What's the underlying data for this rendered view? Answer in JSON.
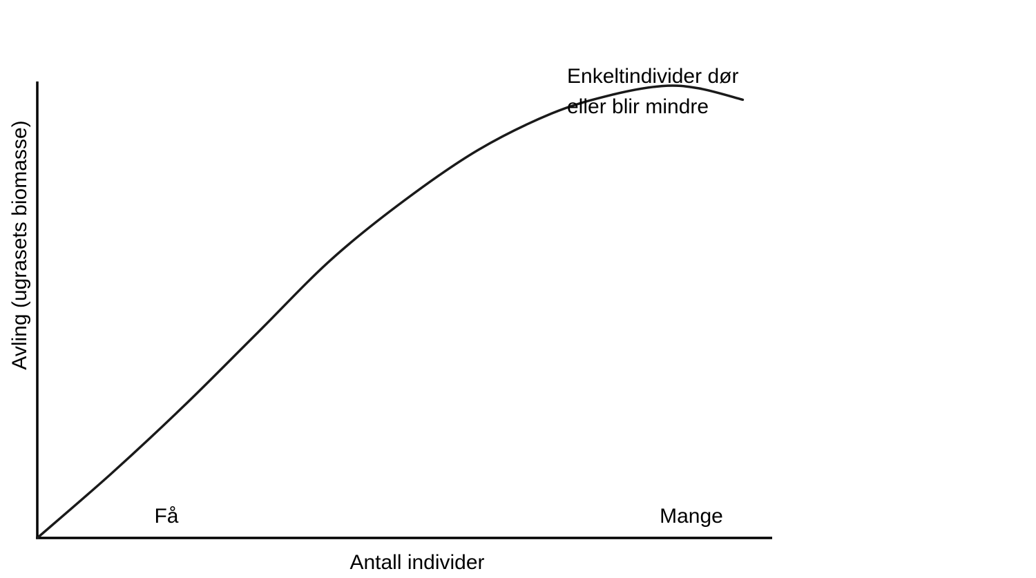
{
  "chart_data": {
    "type": "line",
    "title": "",
    "xlabel": "Antall individer",
    "ylabel": "Avling (ugrasets biomasse)",
    "x_tick_labels": [
      "Få",
      "Mange"
    ],
    "annotation": [
      "Enkeltindivider dør",
      "eller blir mindre"
    ],
    "xlim": [
      0,
      100
    ],
    "ylim": [
      0,
      100
    ],
    "grid": false,
    "legend": "none",
    "series": [
      {
        "x": [
          0,
          10,
          20,
          30,
          40,
          50,
          60,
          70,
          78,
          85,
          90,
          96
        ],
        "y": [
          0,
          14,
          29,
          45,
          61,
          74,
          85,
          93,
          97,
          99,
          98.5,
          96
        ],
        "color": "#1a1a1a"
      }
    ]
  }
}
